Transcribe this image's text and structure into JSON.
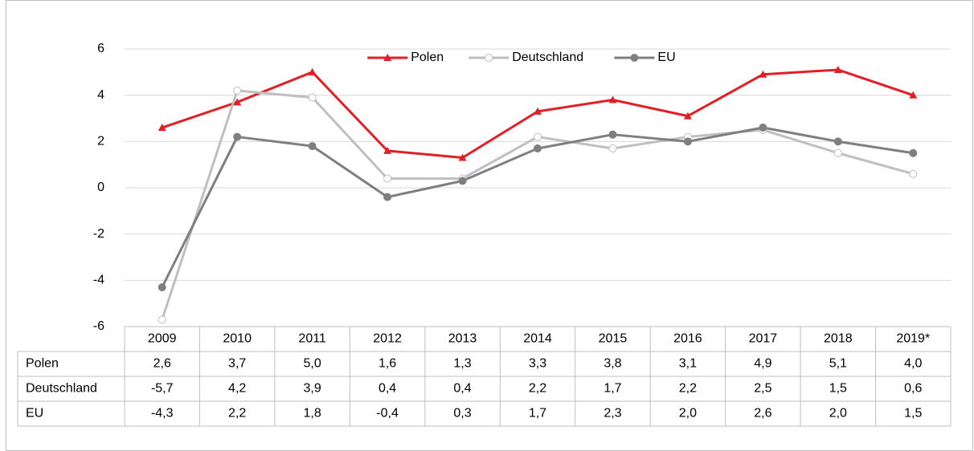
{
  "chart_data": {
    "type": "line",
    "categories": [
      "2009",
      "2010",
      "2011",
      "2012",
      "2013",
      "2014",
      "2015",
      "2016",
      "2017",
      "2018",
      "2019*"
    ],
    "series": [
      {
        "name": "Polen",
        "color": "#e31e24",
        "marker": "triangle",
        "values": [
          2.6,
          3.7,
          5.0,
          1.6,
          1.3,
          3.3,
          3.8,
          3.1,
          4.9,
          5.1,
          4.0
        ],
        "value_labels": [
          "2,6",
          "3,7",
          "5,0",
          "1,6",
          "1,3",
          "3,3",
          "3,8",
          "3,1",
          "4,9",
          "5,1",
          "4,0"
        ]
      },
      {
        "name": "Deutschland",
        "color": "#bfbfbf",
        "marker": "open-circle",
        "values": [
          -5.7,
          4.2,
          3.9,
          0.4,
          0.4,
          2.2,
          1.7,
          2.2,
          2.5,
          1.5,
          0.6
        ],
        "value_labels": [
          "-5,7",
          "4,2",
          "3,9",
          "0,4",
          "0,4",
          "2,2",
          "1,7",
          "2,2",
          "2,5",
          "1,5",
          "0,6"
        ]
      },
      {
        "name": "EU",
        "color": "#7f7f7f",
        "marker": "circle",
        "values": [
          -4.3,
          2.2,
          1.8,
          -0.4,
          0.3,
          1.7,
          2.3,
          2.0,
          2.6,
          2.0,
          1.5
        ],
        "value_labels": [
          "-4,3",
          "2,2",
          "1,8",
          "-0,4",
          "0,3",
          "1,7",
          "2,3",
          "2,0",
          "2,6",
          "2,0",
          "1,5"
        ]
      }
    ],
    "ylim": [
      -6,
      6
    ],
    "yticks": [
      -6,
      -4,
      -2,
      0,
      2,
      4,
      6
    ],
    "grid": true,
    "legend": "top"
  }
}
